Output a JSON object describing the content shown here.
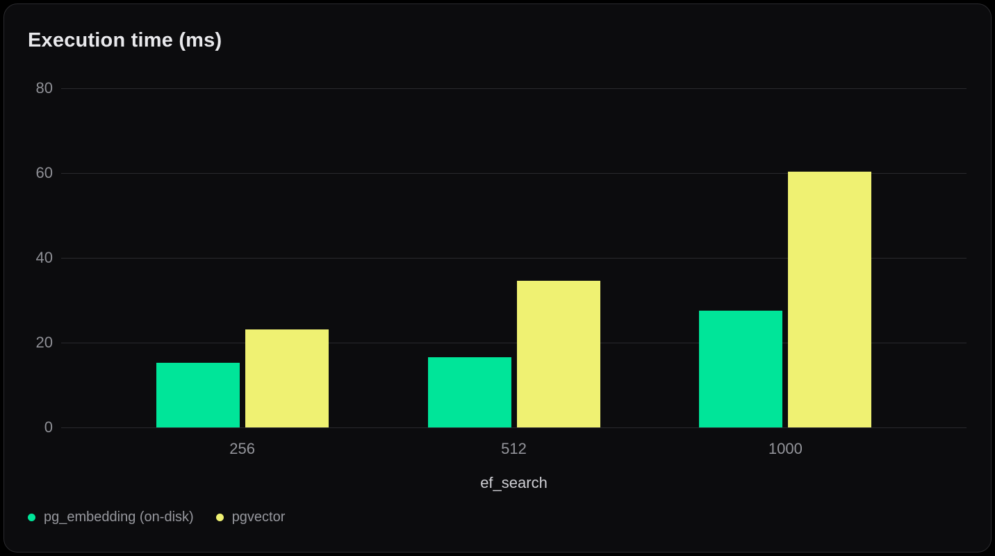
{
  "chart_data": {
    "type": "bar",
    "title": "Execution time (ms)",
    "xlabel": "ef_search",
    "ylabel": "",
    "categories": [
      "256",
      "512",
      "1000"
    ],
    "series": [
      {
        "name": "pg_embedding (on-disk)",
        "color": "#00e599",
        "values": [
          15.3,
          16.5,
          27.6
        ]
      },
      {
        "name": "pgvector",
        "color": "#eff172",
        "values": [
          23.1,
          34.6,
          60.4
        ]
      }
    ],
    "ylim": [
      0,
      80
    ],
    "yticks": [
      0,
      20,
      40,
      60,
      80
    ],
    "grid": true,
    "legend_position": "bottom-left",
    "background_color": "#0c0c0e",
    "gridline_color": "#2a2a2e",
    "title_color": "#e9e9ec",
    "tick_label_color": "#8f9096"
  }
}
